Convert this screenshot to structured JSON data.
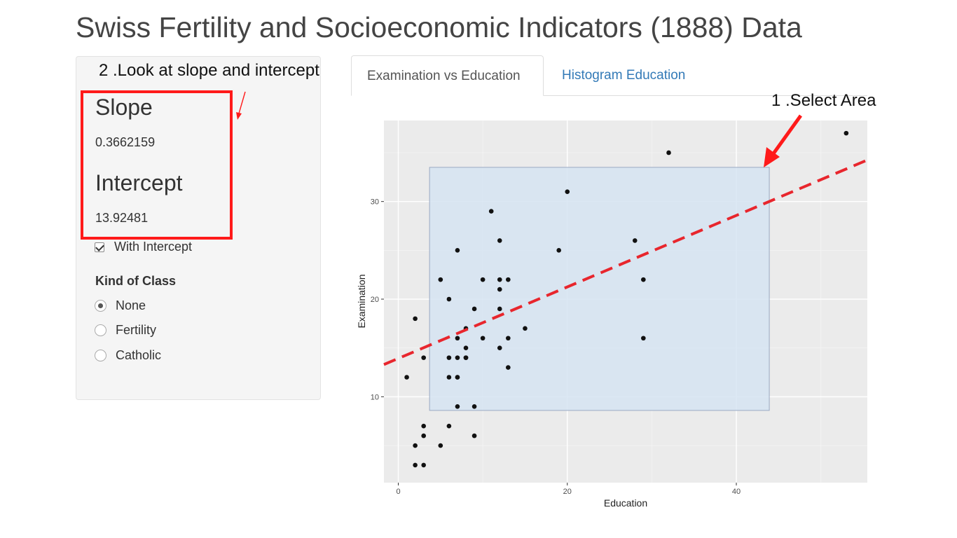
{
  "page": {
    "title": "Swiss Fertility and Socioeconomic Indicators (1888) Data"
  },
  "sidebar": {
    "slope_heading": "Slope",
    "slope_value": "0.3662159",
    "intercept_heading": "Intercept",
    "intercept_value": "13.92481",
    "with_intercept_label": "With Intercept",
    "with_intercept_checked": true,
    "kind_of_class_label": "Kind of Class",
    "radio_options": [
      {
        "label": "None",
        "checked": true
      },
      {
        "label": "Fertility",
        "checked": false
      },
      {
        "label": "Catholic",
        "checked": false
      }
    ]
  },
  "tabs": [
    {
      "label": "Examination vs Education",
      "active": true
    },
    {
      "label": "Histogram Education",
      "active": false
    }
  ],
  "annotations": {
    "step1": "1 .Select Area",
    "step2": "2 .Look at slope and intercept",
    "arrow_color": "#ff1a1a"
  },
  "chart_data": {
    "type": "scatter",
    "xlabel": "Education",
    "ylabel": "Examination",
    "xlim": [
      -1.7,
      55.5
    ],
    "ylim": [
      1.2,
      38.3
    ],
    "xticks": [
      0,
      20,
      40
    ],
    "yticks": [
      10,
      20,
      30
    ],
    "grid": true,
    "background": "#ebebeb",
    "points": [
      [
        12,
        15
      ],
      [
        9,
        6
      ],
      [
        5,
        5
      ],
      [
        7,
        12
      ],
      [
        15,
        17
      ],
      [
        7,
        9
      ],
      [
        7,
        16
      ],
      [
        8,
        14
      ],
      [
        7,
        12
      ],
      [
        13,
        16
      ],
      [
        6,
        14
      ],
      [
        12,
        21
      ],
      [
        7,
        14
      ],
      [
        12,
        19
      ],
      [
        5,
        22
      ],
      [
        2,
        18
      ],
      [
        8,
        17
      ],
      [
        28,
        26
      ],
      [
        20,
        31
      ],
      [
        9,
        19
      ],
      [
        10,
        22
      ],
      [
        3,
        14
      ],
      [
        12,
        22
      ],
      [
        6,
        20
      ],
      [
        1,
        12
      ],
      [
        8,
        14
      ],
      [
        3,
        6
      ],
      [
        10,
        16
      ],
      [
        19,
        25
      ],
      [
        8,
        15
      ],
      [
        2,
        3
      ],
      [
        6,
        7
      ],
      [
        2,
        5
      ],
      [
        6,
        12
      ],
      [
        3,
        7
      ],
      [
        9,
        9
      ],
      [
        3,
        3
      ],
      [
        13,
        13
      ],
      [
        12,
        26
      ],
      [
        11,
        29
      ],
      [
        13,
        22
      ],
      [
        7,
        25
      ],
      [
        32,
        35
      ],
      [
        53,
        37
      ],
      [
        29,
        16
      ],
      [
        29,
        22
      ]
    ],
    "regression_line": {
      "slope": 0.3662159,
      "intercept": 13.92481,
      "style": "dashed",
      "color": "#e8262d"
    },
    "selection": {
      "x_range": [
        3.7,
        43.9
      ],
      "y_range": [
        8.6,
        33.5
      ],
      "fill": "#d6e4f2",
      "stroke": "#9aa9c2"
    }
  }
}
